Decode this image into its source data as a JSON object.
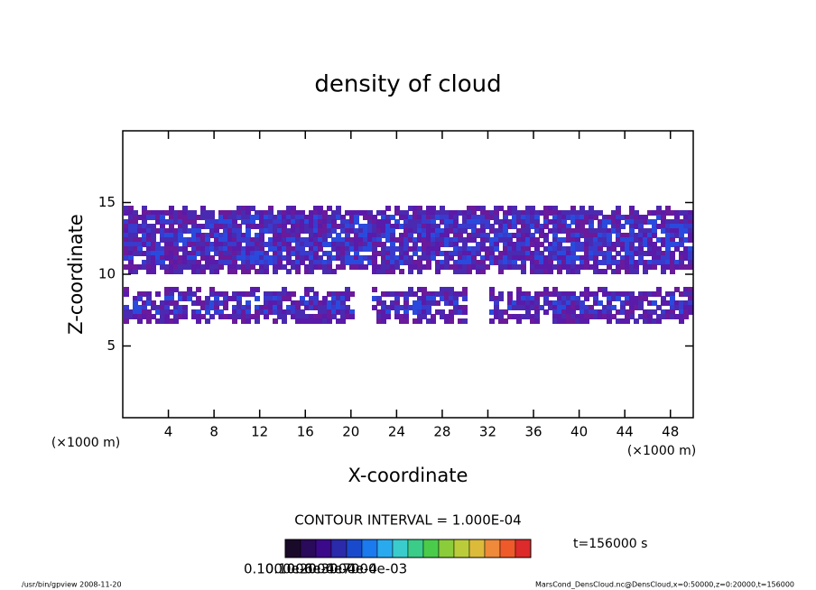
{
  "chart_data": {
    "type": "contour",
    "title": "density of cloud",
    "x_label": "X-coordinate",
    "y_label": "Z-coordinate",
    "x_unit_left": "(×1000 m)",
    "x_unit_right": "(×1000 m)",
    "xlim": [
      0,
      50
    ],
    "ylim": [
      0,
      20
    ],
    "xticks": [
      4,
      8,
      12,
      16,
      20,
      24,
      28,
      32,
      36,
      40,
      44,
      48
    ],
    "yticks": [
      5,
      10,
      15
    ],
    "contour_interval": "CONTOUR INTERVAL = 1.000E-04",
    "time_label": "t=156000 s",
    "colorbar_colors": [
      "#1a0a2a",
      "#2a0a5a",
      "#3a0a8a",
      "#2a2aaa",
      "#1a4acc",
      "#1a7aee",
      "#2aaaee",
      "#3acccc",
      "#3acc88",
      "#4acc4a",
      "#8acc3a",
      "#bbcc3a",
      "#ddbb3a",
      "#ee8a3a",
      "#ee5a2a",
      "#dd2a2a"
    ],
    "colorbar_labels": [
      "0.1000e-6",
      "0.1000e-4",
      "0.2000e-4",
      "0.3000e-4",
      "0.7000e-03"
    ],
    "footer_left": "/usr/bin/gpview  2008-11-20",
    "footer_right": "MarsCond_DensCloud.nc@DensCloud,x=0:50000,z=0:20000,t=156000"
  }
}
